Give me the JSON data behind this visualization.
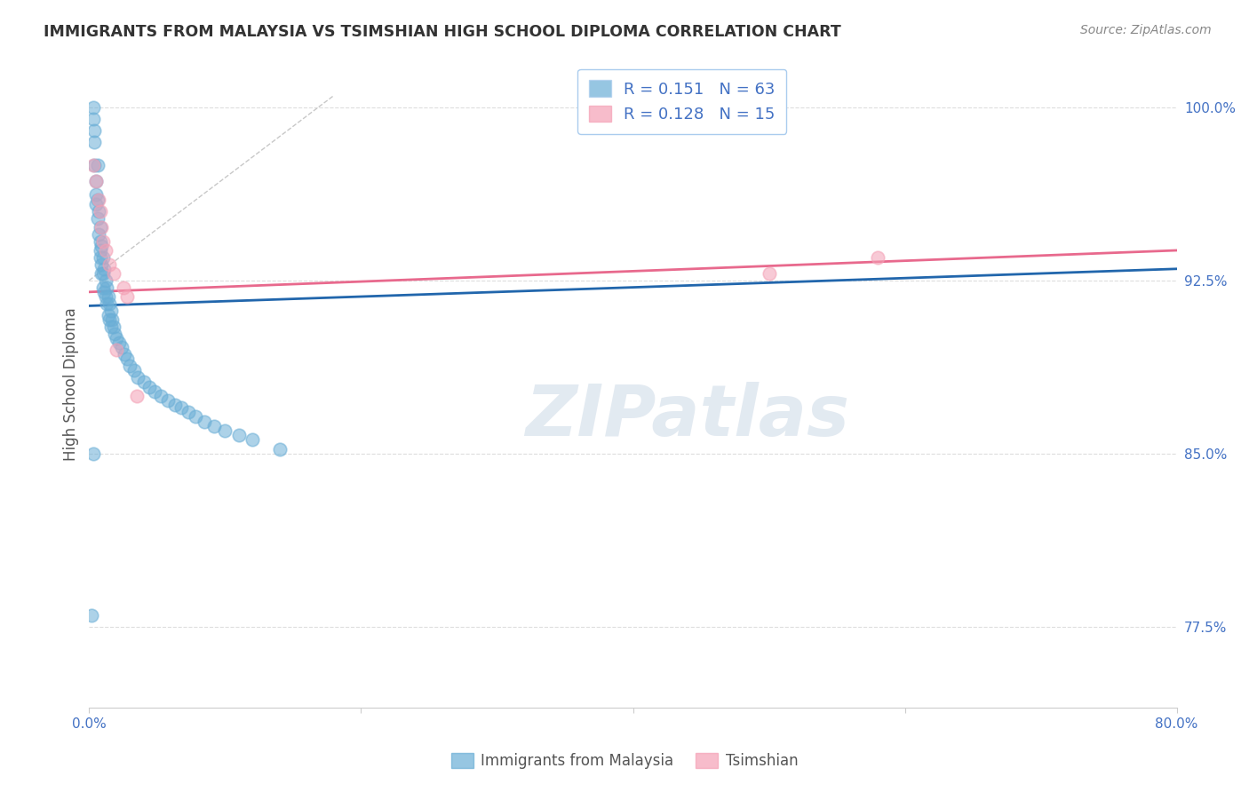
{
  "title": "IMMIGRANTS FROM MALAYSIA VS TSIMSHIAN HIGH SCHOOL DIPLOMA CORRELATION CHART",
  "source": "Source: ZipAtlas.com",
  "xlabel_label": "Immigrants from Malaysia",
  "ylabel_label": "High School Diploma",
  "xlim": [
    0.0,
    0.8
  ],
  "ylim": [
    0.74,
    1.02
  ],
  "ytick_positions": [
    0.775,
    0.85,
    0.925,
    1.0
  ],
  "ytick_labels": [
    "77.5%",
    "85.0%",
    "92.5%",
    "100.0%"
  ],
  "xtick_positions": [
    0.0,
    0.2,
    0.4,
    0.6,
    0.8
  ],
  "xtick_labels": [
    "0.0%",
    "",
    "",
    "",
    "80.0%"
  ],
  "blue_R": 0.151,
  "blue_N": 63,
  "pink_R": 0.128,
  "pink_N": 15,
  "blue_color": "#6aaed6",
  "pink_color": "#f4a0b5",
  "blue_line_color": "#2166ac",
  "pink_line_color": "#e8698d",
  "diag_line_color": "#c8c8c8",
  "background_color": "#ffffff",
  "grid_color": "#dddddd",
  "title_color": "#333333",
  "axis_label_color": "#555555",
  "tick_label_color": "#4472c4",
  "source_color": "#888888",
  "legend_color": "#4472c4",
  "blue_x": [
    0.002,
    0.003,
    0.003,
    0.004,
    0.004,
    0.004,
    0.005,
    0.005,
    0.005,
    0.006,
    0.006,
    0.006,
    0.007,
    0.007,
    0.008,
    0.008,
    0.008,
    0.008,
    0.009,
    0.009,
    0.009,
    0.01,
    0.01,
    0.01,
    0.011,
    0.011,
    0.012,
    0.012,
    0.013,
    0.013,
    0.014,
    0.014,
    0.015,
    0.015,
    0.016,
    0.016,
    0.017,
    0.018,
    0.019,
    0.02,
    0.022,
    0.024,
    0.026,
    0.028,
    0.03,
    0.033,
    0.036,
    0.04,
    0.044,
    0.048,
    0.053,
    0.058,
    0.063,
    0.068,
    0.073,
    0.078,
    0.085,
    0.092,
    0.1,
    0.11,
    0.12,
    0.14,
    0.003
  ],
  "blue_y": [
    0.78,
    1.0,
    0.995,
    0.99,
    0.985,
    0.975,
    0.968,
    0.962,
    0.958,
    0.975,
    0.96,
    0.952,
    0.955,
    0.945,
    0.948,
    0.942,
    0.938,
    0.935,
    0.94,
    0.932,
    0.928,
    0.935,
    0.928,
    0.922,
    0.93,
    0.92,
    0.925,
    0.918,
    0.922,
    0.915,
    0.918,
    0.91,
    0.915,
    0.908,
    0.912,
    0.905,
    0.908,
    0.905,
    0.902,
    0.9,
    0.898,
    0.896,
    0.893,
    0.891,
    0.888,
    0.886,
    0.883,
    0.881,
    0.879,
    0.877,
    0.875,
    0.873,
    0.871,
    0.87,
    0.868,
    0.866,
    0.864,
    0.862,
    0.86,
    0.858,
    0.856,
    0.852,
    0.85
  ],
  "pink_x": [
    0.003,
    0.005,
    0.007,
    0.008,
    0.009,
    0.01,
    0.012,
    0.015,
    0.018,
    0.02,
    0.025,
    0.028,
    0.035,
    0.5,
    0.58
  ],
  "pink_y": [
    0.975,
    0.968,
    0.96,
    0.955,
    0.948,
    0.942,
    0.938,
    0.932,
    0.928,
    0.895,
    0.922,
    0.918,
    0.875,
    0.928,
    0.935
  ],
  "blue_trend": [
    0.0,
    0.8,
    0.914,
    0.93
  ],
  "pink_trend": [
    0.0,
    0.8,
    0.92,
    0.938
  ],
  "diag_line": [
    0.0,
    0.18,
    0.925,
    1.005
  ],
  "marker_size": 110,
  "marker_alpha": 0.55,
  "watermark_text": "ZIPatlas",
  "watermark_color": "#d0dce8",
  "watermark_alpha": 0.6
}
